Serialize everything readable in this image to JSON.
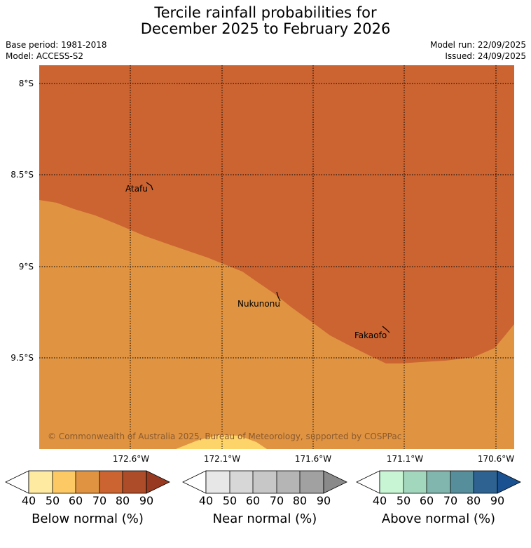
{
  "header": {
    "title_line1": "Tercile rainfall probabilities for",
    "title_line2": "December 2025 to February 2026",
    "base_period": "Base period: 1981-2018",
    "model": "Model: ACCESS-S2",
    "model_run": "Model run: 22/09/2025",
    "issued": "Issued: 24/09/2025"
  },
  "map": {
    "latitude_labels": [
      "8°S",
      "8.5°S",
      "9°S",
      "9.5°S"
    ],
    "longitude_labels": [
      "172.6°W",
      "172.1°W",
      "171.6°W",
      "171.1°W",
      "170.6°W"
    ],
    "places": [
      {
        "name": "Atafu"
      },
      {
        "name": "Nukunonu"
      },
      {
        "name": "Fakaofo"
      }
    ],
    "copyright": "© Commonwealth of Australia 2025, Bureau of Meteorology, supported by COSPPac",
    "fill_colors": {
      "below_70_80": "#cb6431",
      "below_60_70": "#e09442",
      "below_50_60": "#fdd46a"
    }
  },
  "colorbars": [
    {
      "title": "Below normal (%)",
      "ticks": [
        "40",
        "50",
        "60",
        "70",
        "80",
        "90"
      ],
      "colors": [
        "#ffffff",
        "#feeaa0",
        "#fdc964",
        "#e09442",
        "#cb6431",
        "#ad4c28",
        "#973a21"
      ]
    },
    {
      "title": "Near normal (%)",
      "ticks": [
        "40",
        "50",
        "60",
        "70",
        "80",
        "90"
      ],
      "colors": [
        "#ffffff",
        "#e7e7e7",
        "#d7d7d7",
        "#c7c7c7",
        "#b5b5b5",
        "#a1a1a1",
        "#8a8a8a"
      ]
    },
    {
      "title": "Above normal (%)",
      "ticks": [
        "40",
        "50",
        "60",
        "70",
        "80",
        "90"
      ],
      "colors": [
        "#ffffff",
        "#c8f5d4",
        "#a3d7bd",
        "#80b6ad",
        "#568e9b",
        "#2e6291",
        "#1a5190"
      ]
    }
  ]
}
